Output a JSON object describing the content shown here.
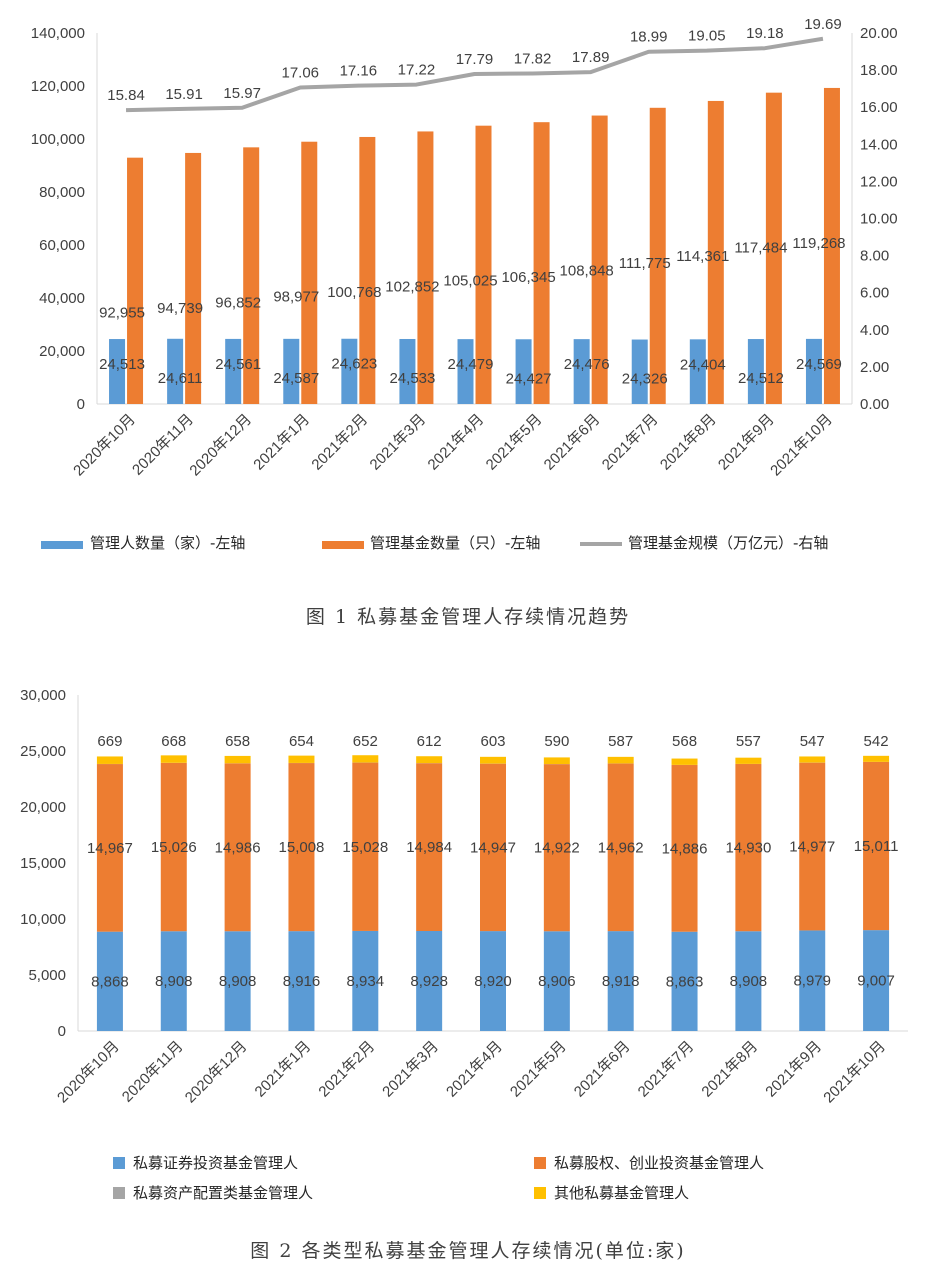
{
  "chart_data": [
    {
      "type": "bar",
      "title": "",
      "caption": "图 1  私募基金管理人存续情况趋势",
      "categories": [
        "2020年10月",
        "2020年11月",
        "2020年12月",
        "2021年1月",
        "2021年2月",
        "2021年3月",
        "2021年4月",
        "2021年5月",
        "2021年6月",
        "2021年7月",
        "2021年8月",
        "2021年9月",
        "2021年10月"
      ],
      "ylim_left": [
        0,
        140000
      ],
      "ylim_right": [
        0,
        20
      ],
      "left_ticks": [
        "0",
        "20,000",
        "40,000",
        "60,000",
        "80,000",
        "100,000",
        "120,000",
        "140,000"
      ],
      "right_ticks": [
        "0.00",
        "2.00",
        "4.00",
        "6.00",
        "8.00",
        "10.00",
        "12.00",
        "14.00",
        "16.00",
        "18.00",
        "20.00"
      ],
      "legend_position": "bottom",
      "grid": false,
      "series": [
        {
          "name": "管理人数量（家）-左轴",
          "kind": "bar",
          "axis": "left",
          "color": "#5b9bd5",
          "values": [
            24513,
            24611,
            24561,
            24587,
            24623,
            24533,
            24479,
            24427,
            24476,
            24326,
            24404,
            24512,
            24569
          ],
          "labels": [
            "24,513",
            "24,611",
            "24,561",
            "24,587",
            "24,623",
            "24,533",
            "24,479",
            "24,427",
            "24,476",
            "24,326",
            "24,404",
            "24,512",
            "24,569"
          ]
        },
        {
          "name": "管理基金数量（只）-左轴",
          "kind": "bar",
          "axis": "left",
          "color": "#ed7d31",
          "values": [
            92955,
            94739,
            96852,
            98977,
            100768,
            102852,
            105025,
            106345,
            108848,
            111775,
            114361,
            117484,
            119268
          ],
          "labels": [
            "92,955",
            "94,739",
            "96,852",
            "98,977",
            "100,768",
            "102,852",
            "105,025",
            "106,345",
            "108,848",
            "111,775",
            "114,361",
            "117,484",
            "119,268"
          ]
        },
        {
          "name": "管理基金规模（万亿元）-右轴",
          "kind": "line",
          "axis": "right",
          "color": "#a5a5a5",
          "values": [
            15.84,
            15.91,
            15.97,
            17.06,
            17.16,
            17.22,
            17.79,
            17.82,
            17.89,
            18.99,
            19.05,
            19.18,
            19.69
          ],
          "labels": [
            "15.84",
            "15.91",
            "15.97",
            "17.06",
            "17.16",
            "17.22",
            "17.79",
            "17.82",
            "17.89",
            "18.99",
            "19.05",
            "19.18",
            "19.69"
          ]
        }
      ]
    },
    {
      "type": "bar",
      "stacked": true,
      "title": "",
      "caption": "图 2  各类型私募基金管理人存续情况(单位:家)",
      "categories": [
        "2020年10月",
        "2020年11月",
        "2020年12月",
        "2021年1月",
        "2021年2月",
        "2021年3月",
        "2021年4月",
        "2021年5月",
        "2021年6月",
        "2021年7月",
        "2021年8月",
        "2021年9月",
        "2021年10月"
      ],
      "ylim": [
        0,
        30000
      ],
      "y_ticks": [
        "0",
        "5,000",
        "10,000",
        "15,000",
        "20,000",
        "25,000",
        "30,000"
      ],
      "legend_position": "bottom",
      "grid": false,
      "series": [
        {
          "name": "私募证券投资基金管理人",
          "color": "#5b9bd5",
          "values": [
            8868,
            8908,
            8908,
            8916,
            8934,
            8928,
            8920,
            8906,
            8918,
            8863,
            8908,
            8979,
            9007
          ],
          "labels": [
            "8,868",
            "8,908",
            "8,908",
            "8,916",
            "8,934",
            "8,928",
            "8,920",
            "8,906",
            "8,918",
            "8,863",
            "8,908",
            "8,979",
            "9,007"
          ]
        },
        {
          "name": "私募股权、创业投资基金管理人",
          "color": "#ed7d31",
          "values": [
            14967,
            15026,
            14986,
            15008,
            15028,
            14984,
            14947,
            14922,
            14962,
            14886,
            14930,
            14977,
            15011
          ],
          "labels": [
            "14,967",
            "15,026",
            "14,986",
            "15,008",
            "15,028",
            "14,984",
            "14,947",
            "14,922",
            "14,962",
            "14,886",
            "14,930",
            "14,977",
            "15,011"
          ]
        },
        {
          "name": "私募资产配置类基金管理人",
          "color": "#a5a5a5",
          "values": [
            9,
            9,
            9,
            9,
            9,
            9,
            9,
            9,
            10,
            9,
            9,
            9,
            9
          ],
          "labels": []
        },
        {
          "name": "其他私募基金管理人",
          "color": "#ffc000",
          "values": [
            669,
            668,
            658,
            654,
            652,
            612,
            603,
            590,
            587,
            568,
            557,
            547,
            542
          ],
          "labels": [
            "669",
            "668",
            "658",
            "654",
            "652",
            "612",
            "603",
            "590",
            "587",
            "568",
            "557",
            "547",
            "542"
          ]
        }
      ]
    }
  ]
}
